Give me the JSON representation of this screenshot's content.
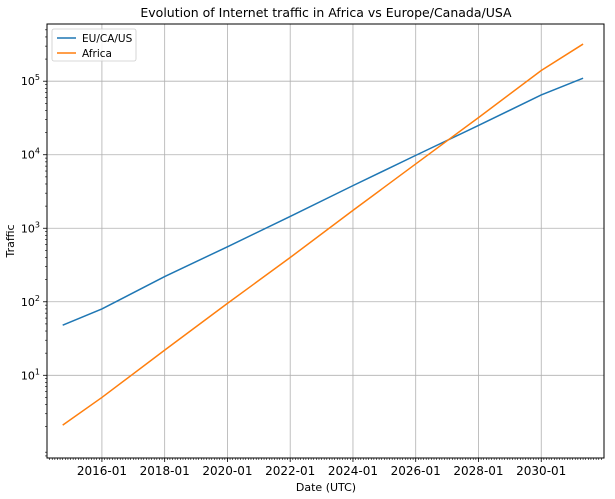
{
  "chart_data": {
    "type": "line",
    "title": "Evolution of Internet traffic in Africa vs Europe/Canada/USA",
    "xlabel": "Date (UTC)",
    "ylabel": "Traffic",
    "x_scale": "time",
    "y_scale": "log",
    "xlim": [
      "2014-04",
      "2032-01"
    ],
    "ylim": [
      0.75,
      600000
    ],
    "grid": true,
    "legend_position": "top-left",
    "x_tick_labels": [
      "2016-01",
      "2018-01",
      "2020-01",
      "2022-01",
      "2024-01",
      "2026-01",
      "2028-01",
      "2030-01"
    ],
    "x_tick_dates": [
      "2016-01",
      "2018-01",
      "2020-01",
      "2022-01",
      "2024-01",
      "2026-01",
      "2028-01",
      "2030-01"
    ],
    "y_ticks": [
      {
        "value": 10,
        "base": "10",
        "exp": "1"
      },
      {
        "value": 100,
        "base": "10",
        "exp": "2"
      },
      {
        "value": 1000,
        "base": "10",
        "exp": "3"
      },
      {
        "value": 10000,
        "base": "10",
        "exp": "4"
      },
      {
        "value": 100000,
        "base": "10",
        "exp": "5"
      }
    ],
    "series": [
      {
        "name": "EU/CA/US",
        "color": "#1f77b4",
        "x": [
          "2014-10",
          "2016-01",
          "2018-01",
          "2020-01",
          "2022-01",
          "2024-01",
          "2026-01",
          "2028-01",
          "2030-01",
          "2031-05"
        ],
        "y": [
          48,
          80,
          220,
          560,
          1450,
          3800,
          9800,
          25000,
          65000,
          110000
        ]
      },
      {
        "name": "Africa",
        "color": "#ff7f0e",
        "x": [
          "2014-10",
          "2016-01",
          "2018-01",
          "2020-01",
          "2022-01",
          "2024-01",
          "2026-01",
          "2028-01",
          "2030-01",
          "2031-05"
        ],
        "y": [
          2.1,
          5,
          22,
          95,
          400,
          1750,
          7500,
          32000,
          140000,
          320000
        ]
      }
    ]
  }
}
